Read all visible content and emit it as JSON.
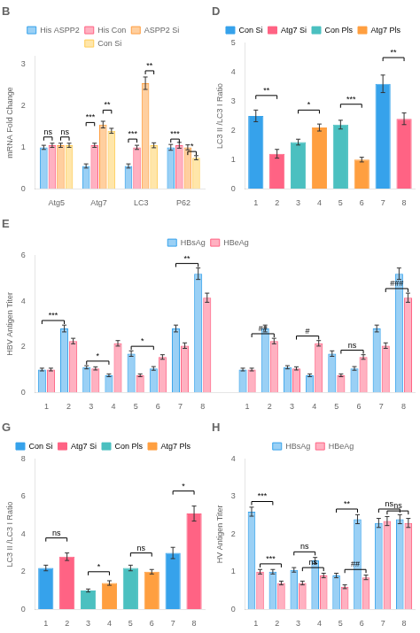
{
  "chart_data": [
    {
      "type": "bar",
      "title": "B",
      "categories": [
        "Atg5",
        "Atg7",
        "LC3",
        "P62"
      ],
      "series": [
        {
          "name": "His ASPP2",
          "values": [
            1.0,
            0.55,
            0.55,
            1.0
          ],
          "errors": [
            0.05,
            0.05,
            0.05,
            0.07
          ]
        },
        {
          "name": "His Con",
          "values": [
            1.05,
            1.05,
            1.0,
            1.05
          ],
          "errors": [
            0.05,
            0.05,
            0.05,
            0.07
          ]
        },
        {
          "name": "ASPP2 Si",
          "values": [
            1.05,
            1.55,
            2.55,
            1.0
          ],
          "errors": [
            0.05,
            0.08,
            0.15,
            0.06
          ]
        },
        {
          "name": "Con Si",
          "values": [
            1.05,
            1.4,
            1.05,
            0.75
          ],
          "errors": [
            0.05,
            0.06,
            0.06,
            0.05
          ]
        }
      ],
      "ylabel": "mRNA Fold Change",
      "ylim": [
        0,
        3.2
      ],
      "yticks": [
        0,
        1,
        2,
        3
      ],
      "grid": false,
      "legend": "top",
      "annotations": [
        {
          "series": [
            "His ASPP2",
            "His Con"
          ],
          "index": [
            0,
            0
          ],
          "y": 1.25,
          "label": "ns"
        },
        {
          "series": [
            "ASPP2 Si",
            "Con Si"
          ],
          "index": [
            0,
            0
          ],
          "y": 1.25,
          "label": "ns"
        },
        {
          "series": [
            "His ASPP2",
            "His Con"
          ],
          "index": [
            1,
            1
          ],
          "y": 1.6,
          "label": "***"
        },
        {
          "series": [
            "ASPP2 Si",
            "Con Si"
          ],
          "index": [
            1,
            1
          ],
          "y": 1.9,
          "label": "**"
        },
        {
          "series": [
            "His ASPP2",
            "His Con"
          ],
          "index": [
            2,
            2
          ],
          "y": 1.2,
          "label": "***"
        },
        {
          "series": [
            "ASPP2 Si",
            "Con Si"
          ],
          "index": [
            2,
            2
          ],
          "y": 2.85,
          "label": "**"
        },
        {
          "series": [
            "His ASPP2",
            "His Con"
          ],
          "index": [
            3,
            3
          ],
          "y": 1.2,
          "label": "***"
        },
        {
          "series": [
            "ASPP2 Si",
            "Con Si"
          ],
          "index": [
            3,
            3
          ],
          "y": 0.9,
          "label": "*"
        }
      ]
    },
    {
      "type": "bar",
      "title": "D",
      "categories": [
        "1",
        "2",
        "3",
        "4",
        "5",
        "6",
        "7",
        "8"
      ],
      "values": [
        2.5,
        1.2,
        1.6,
        2.1,
        2.2,
        1.0,
        3.6,
        2.4
      ],
      "errors": [
        0.2,
        0.15,
        0.1,
        0.12,
        0.15,
        0.08,
        0.3,
        0.2
      ],
      "colors": [
        "#36a2eb",
        "#ff6384",
        "#4bc0c0",
        "#ff9f40",
        "#4bc0c0",
        "#ff9f40",
        "#36a2eb",
        "#ff6384"
      ],
      "legend_labels": [
        "Con Si",
        "Atg7 Si",
        "Con Pls",
        "Atg7 Pls"
      ],
      "legend_colors": [
        "#36a2eb",
        "#ff6384",
        "#4bc0c0",
        "#ff9f40"
      ],
      "ylabel": "LC3 II /LC3 I Ratio",
      "ylim": [
        0,
        5
      ],
      "yticks": [
        0,
        1,
        2,
        3,
        4,
        5
      ],
      "grid": false,
      "legend": "top",
      "annotations": [
        {
          "index": [
            0,
            1
          ],
          "y": 3.2,
          "label": "**"
        },
        {
          "index": [
            2,
            3
          ],
          "y": 2.7,
          "label": "*"
        },
        {
          "index": [
            4,
            5
          ],
          "y": 2.9,
          "label": "***"
        },
        {
          "index": [
            6,
            7
          ],
          "y": 4.5,
          "label": "**"
        }
      ]
    },
    {
      "type": "bar",
      "title": "E",
      "categories": [
        "1",
        "2",
        "3",
        "4",
        "5",
        "6",
        "7",
        "8",
        null,
        "1",
        "2",
        "3",
        "4",
        "5",
        "6",
        "7",
        "8"
      ],
      "series": [
        {
          "name": "HBsAg",
          "values": [
            1.0,
            2.8,
            1.1,
            0.75,
            1.7,
            1.05,
            2.8,
            5.2,
            null,
            1.0,
            2.8,
            1.1,
            0.75,
            1.7,
            1.05,
            2.8,
            5.2
          ],
          "errors": [
            0.06,
            0.15,
            0.07,
            0.06,
            0.12,
            0.08,
            0.15,
            0.25,
            null,
            0.06,
            0.15,
            0.07,
            0.06,
            0.12,
            0.08,
            0.15,
            0.25
          ]
        },
        {
          "name": "HBeAg",
          "values": [
            1.0,
            2.25,
            1.05,
            2.15,
            0.75,
            1.55,
            2.05,
            4.15,
            null,
            1.0,
            2.25,
            1.05,
            2.15,
            0.75,
            1.55,
            2.05,
            4.15
          ],
          "errors": [
            0.06,
            0.12,
            0.07,
            0.12,
            0.06,
            0.1,
            0.12,
            0.2,
            null,
            0.06,
            0.12,
            0.07,
            0.12,
            0.06,
            0.1,
            0.12,
            0.2
          ]
        }
      ],
      "ylabel": "HBV Antigen Titer",
      "ylim": [
        0,
        6
      ],
      "yticks": [
        0,
        2,
        4,
        6
      ],
      "grid": false,
      "legend": "top",
      "annotations": [
        {
          "series": [
            "HBsAg",
            "HBsAg"
          ],
          "index": [
            0,
            1
          ],
          "y": 3.15,
          "label": "***"
        },
        {
          "series": [
            "HBsAg",
            "HBsAg"
          ],
          "index": [
            2,
            3
          ],
          "y": 1.37,
          "label": "*"
        },
        {
          "series": [
            "HBsAg",
            "HBsAg"
          ],
          "index": [
            4,
            5
          ],
          "y": 2.02,
          "label": "*"
        },
        {
          "series": [
            "HBsAg",
            "HBsAg"
          ],
          "index": [
            6,
            7
          ],
          "y": 5.65,
          "label": "**"
        },
        {
          "series": [
            "HBeAg",
            "HBeAg"
          ],
          "index": [
            9,
            10
          ],
          "y": 2.57,
          "label": "##"
        },
        {
          "series": [
            "HBeAg",
            "HBeAg"
          ],
          "index": [
            11,
            12
          ],
          "y": 2.47,
          "label": "#"
        },
        {
          "series": [
            "HBeAg",
            "HBeAg"
          ],
          "index": [
            13,
            14
          ],
          "y": 1.85,
          "label": "ns"
        },
        {
          "series": [
            "HBeAg",
            "HBeAg"
          ],
          "index": [
            15,
            16
          ],
          "y": 4.55,
          "label": "###"
        }
      ]
    },
    {
      "type": "bar",
      "title": "G",
      "categories": [
        "1",
        "2",
        "3",
        "4",
        "5",
        "6",
        "7",
        "8"
      ],
      "values": [
        2.2,
        2.8,
        1.0,
        1.4,
        2.2,
        2.0,
        3.0,
        5.1
      ],
      "errors": [
        0.15,
        0.2,
        0.08,
        0.12,
        0.15,
        0.12,
        0.3,
        0.4
      ],
      "colors": [
        "#36a2eb",
        "#ff6384",
        "#4bc0c0",
        "#ff9f40",
        "#4bc0c0",
        "#ff9f40",
        "#36a2eb",
        "#ff6384"
      ],
      "legend_labels": [
        "Con Si",
        "Atg7 Si",
        "Con Pls",
        "Atg7 Pls"
      ],
      "legend_colors": [
        "#36a2eb",
        "#ff6384",
        "#4bc0c0",
        "#ff9f40"
      ],
      "ylabel": "LC3 II /LC3 I Ratio",
      "ylim": [
        0,
        8
      ],
      "yticks": [
        0,
        2,
        4,
        6,
        8
      ],
      "grid": false,
      "legend": "top",
      "annotations": [
        {
          "index": [
            0,
            1
          ],
          "y": 3.8,
          "label": "ns"
        },
        {
          "index": [
            2,
            3
          ],
          "y": 2.0,
          "label": "*"
        },
        {
          "index": [
            4,
            5
          ],
          "y": 3.0,
          "label": "ns"
        },
        {
          "index": [
            6,
            7
          ],
          "y": 6.3,
          "label": "*"
        }
      ]
    },
    {
      "type": "bar",
      "title": "H",
      "categories": [
        "1",
        "2",
        "3",
        "4",
        "5",
        "6",
        "7",
        "8"
      ],
      "series": [
        {
          "name": "HBsAg",
          "values": [
            2.6,
            1.0,
            1.05,
            1.3,
            0.9,
            2.4,
            2.3,
            2.4
          ],
          "errors": [
            0.12,
            0.06,
            0.06,
            0.08,
            0.06,
            0.12,
            0.12,
            0.12
          ]
        },
        {
          "name": "HBeAg",
          "values": [
            1.0,
            0.7,
            0.7,
            0.9,
            0.6,
            0.85,
            2.35,
            2.3
          ],
          "errors": [
            0.06,
            0.05,
            0.05,
            0.06,
            0.05,
            0.06,
            0.12,
            0.12
          ]
        }
      ],
      "ylabel": "HV Antigen Titer",
      "ylim": [
        0,
        4
      ],
      "yticks": [
        0,
        1,
        2,
        3,
        4
      ],
      "grid": false,
      "legend": "top",
      "annotations": [
        {
          "series": [
            "HBsAg",
            "HBsAg"
          ],
          "index": [
            0,
            1
          ],
          "y": 2.87,
          "label": "***"
        },
        {
          "series": [
            "HBsAg",
            "HBsAg"
          ],
          "index": [
            2,
            3
          ],
          "y": 1.53,
          "label": "ns"
        },
        {
          "series": [
            "HBsAg",
            "HBsAg"
          ],
          "index": [
            4,
            5
          ],
          "y": 2.67,
          "label": "**"
        },
        {
          "series": [
            "HBsAg",
            "HBsAg"
          ],
          "index": [
            6,
            7
          ],
          "y": 2.67,
          "label": "ns"
        },
        {
          "series": [
            "HBeAg",
            "HBeAg"
          ],
          "index": [
            0,
            1
          ],
          "y": 1.21,
          "label": "***"
        },
        {
          "series": [
            "HBeAg",
            "HBeAg"
          ],
          "index": [
            2,
            3
          ],
          "y": 1.11,
          "label": "ns"
        },
        {
          "series": [
            "HBeAg",
            "HBeAg"
          ],
          "index": [
            4,
            5
          ],
          "y": 1.06,
          "label": "##"
        },
        {
          "series": [
            "HBeAg",
            "HBeAg"
          ],
          "index": [
            6,
            7
          ],
          "y": 2.62,
          "label": "ns"
        }
      ]
    }
  ]
}
